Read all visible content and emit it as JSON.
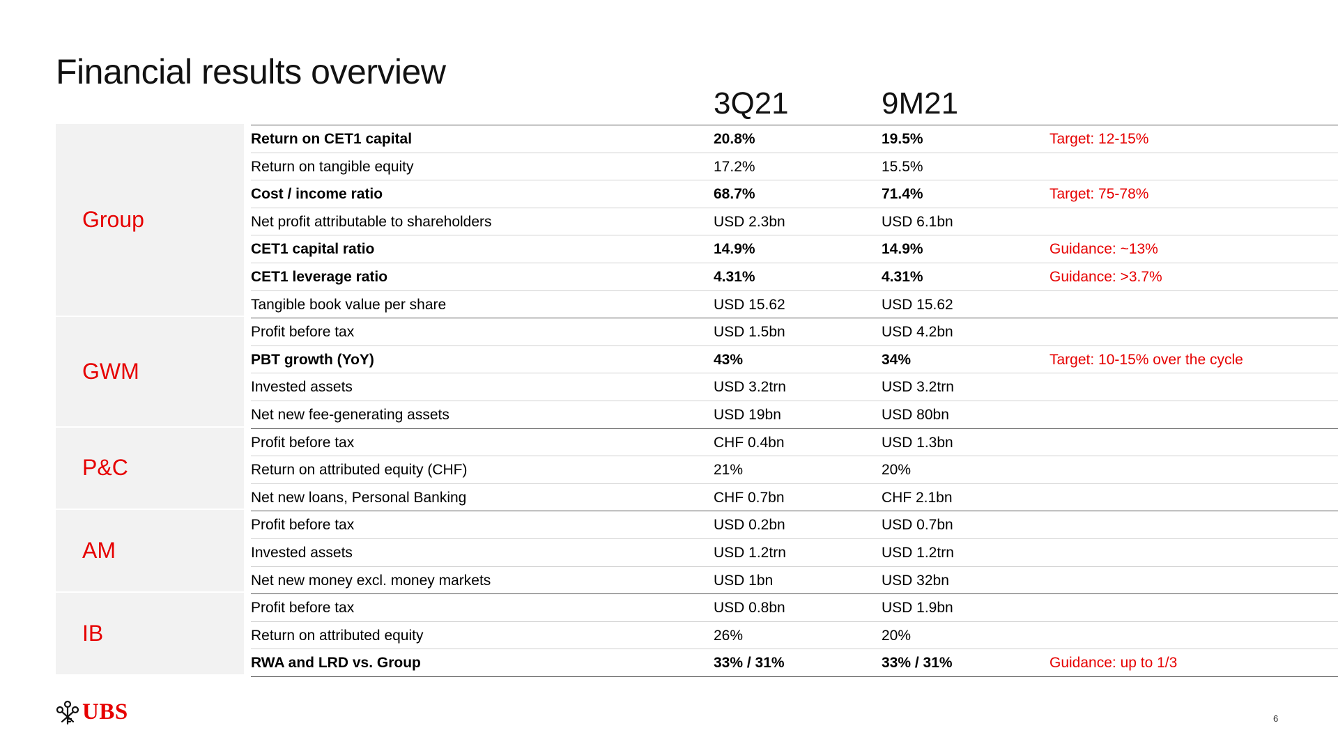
{
  "title": "Financial results overview",
  "columns": [
    "3Q21",
    "9M21"
  ],
  "segments": [
    {
      "name": "Group",
      "rows": [
        {
          "metric": "Return on CET1 capital",
          "q": "20.8%",
          "m": "19.5%",
          "note": "Target: 12-15%",
          "bold": true
        },
        {
          "metric": "Return on tangible equity",
          "q": "17.2%",
          "m": "15.5%",
          "note": "",
          "bold": false
        },
        {
          "metric": "Cost / income ratio",
          "q": "68.7%",
          "m": "71.4%",
          "note": "Target: 75-78%",
          "bold": true
        },
        {
          "metric": "Net profit attributable to shareholders",
          "q": "USD 2.3bn",
          "m": "USD 6.1bn",
          "note": "",
          "bold": false
        },
        {
          "metric": "CET1 capital ratio",
          "q": "14.9%",
          "m": "14.9%",
          "note": "Guidance: ~13%",
          "bold": true
        },
        {
          "metric": "CET1 leverage ratio",
          "q": "4.31%",
          "m": "4.31%",
          "note": "Guidance: >3.7%",
          "bold": true
        },
        {
          "metric": "Tangible book value per share",
          "q": "USD 15.62",
          "m": "USD 15.62",
          "note": "",
          "bold": false
        }
      ]
    },
    {
      "name": "GWM",
      "rows": [
        {
          "metric": "Profit before tax",
          "q": "USD 1.5bn",
          "m": "USD 4.2bn",
          "note": "",
          "bold": false
        },
        {
          "metric": "PBT growth (YoY)",
          "q": "43%",
          "m": "34%",
          "note": "Target: 10-15% over the cycle",
          "bold": true
        },
        {
          "metric": "Invested assets",
          "q": "USD 3.2trn",
          "m": "USD 3.2trn",
          "note": "",
          "bold": false
        },
        {
          "metric": "Net new fee-generating assets",
          "q": "USD 19bn",
          "m": "USD 80bn",
          "note": "",
          "bold": false
        }
      ]
    },
    {
      "name": "P&C",
      "rows": [
        {
          "metric": "Profit before tax",
          "q": "CHF 0.4bn",
          "m": "USD 1.3bn",
          "note": "",
          "bold": false
        },
        {
          "metric": "Return on attributed equity (CHF)",
          "q": "21%",
          "m": "20%",
          "note": "",
          "bold": false
        },
        {
          "metric": "Net new loans, Personal Banking",
          "q": "CHF 0.7bn",
          "m": "CHF 2.1bn",
          "note": "",
          "bold": false
        }
      ]
    },
    {
      "name": "AM",
      "rows": [
        {
          "metric": "Profit before tax",
          "q": "USD 0.2bn",
          "m": "USD 0.7bn",
          "note": "",
          "bold": false
        },
        {
          "metric": "Invested assets",
          "q": "USD 1.2trn",
          "m": "USD 1.2trn",
          "note": "",
          "bold": false
        },
        {
          "metric": "Net new money excl. money markets",
          "q": "USD 1bn",
          "m": "USD 32bn",
          "note": "",
          "bold": false
        }
      ]
    },
    {
      "name": "IB",
      "rows": [
        {
          "metric": "Profit before tax",
          "q": "USD 0.8bn",
          "m": "USD 1.9bn",
          "note": "",
          "bold": false
        },
        {
          "metric": "Return on attributed equity",
          "q": "26%",
          "m": "20%",
          "note": "",
          "bold": false
        },
        {
          "metric": "RWA and LRD vs. Group",
          "q": "33% / 31%",
          "m": "33% / 31%",
          "note": "Guidance: up to 1/3",
          "bold": true
        }
      ]
    }
  ],
  "colors": {
    "accent": "#e60000",
    "segment_bg": "#f2f2f2",
    "rule": "#555555"
  },
  "logo": {
    "text": "UBS",
    "icon": "three-keys-icon"
  },
  "page_number": "6"
}
